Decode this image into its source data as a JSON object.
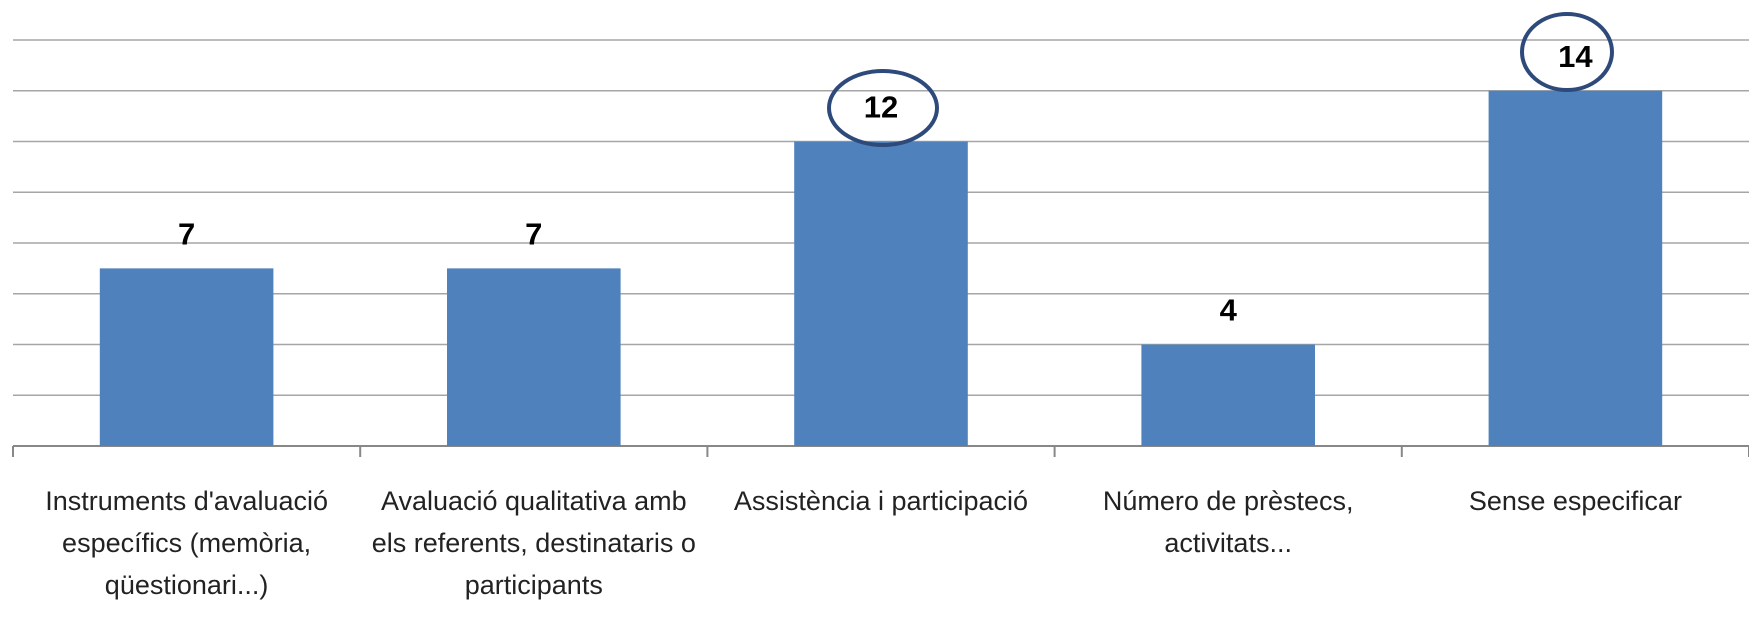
{
  "chart_data": {
    "type": "bar",
    "categories": [
      "Instruments d'avaluació específics (memòria, qüestionari...)",
      "Avaluació qualitativa amb els referents, destinataris o participants",
      "Assistència i participació",
      "Número de prèstecs, activitats...",
      "Sense especificar"
    ],
    "values": [
      7,
      7,
      12,
      4,
      14
    ],
    "color": "#4f81bd",
    "ylim": [
      0,
      16
    ],
    "yticks": [
      0,
      2,
      4,
      6,
      8,
      10,
      12,
      14,
      16
    ],
    "grid": true
  }
}
